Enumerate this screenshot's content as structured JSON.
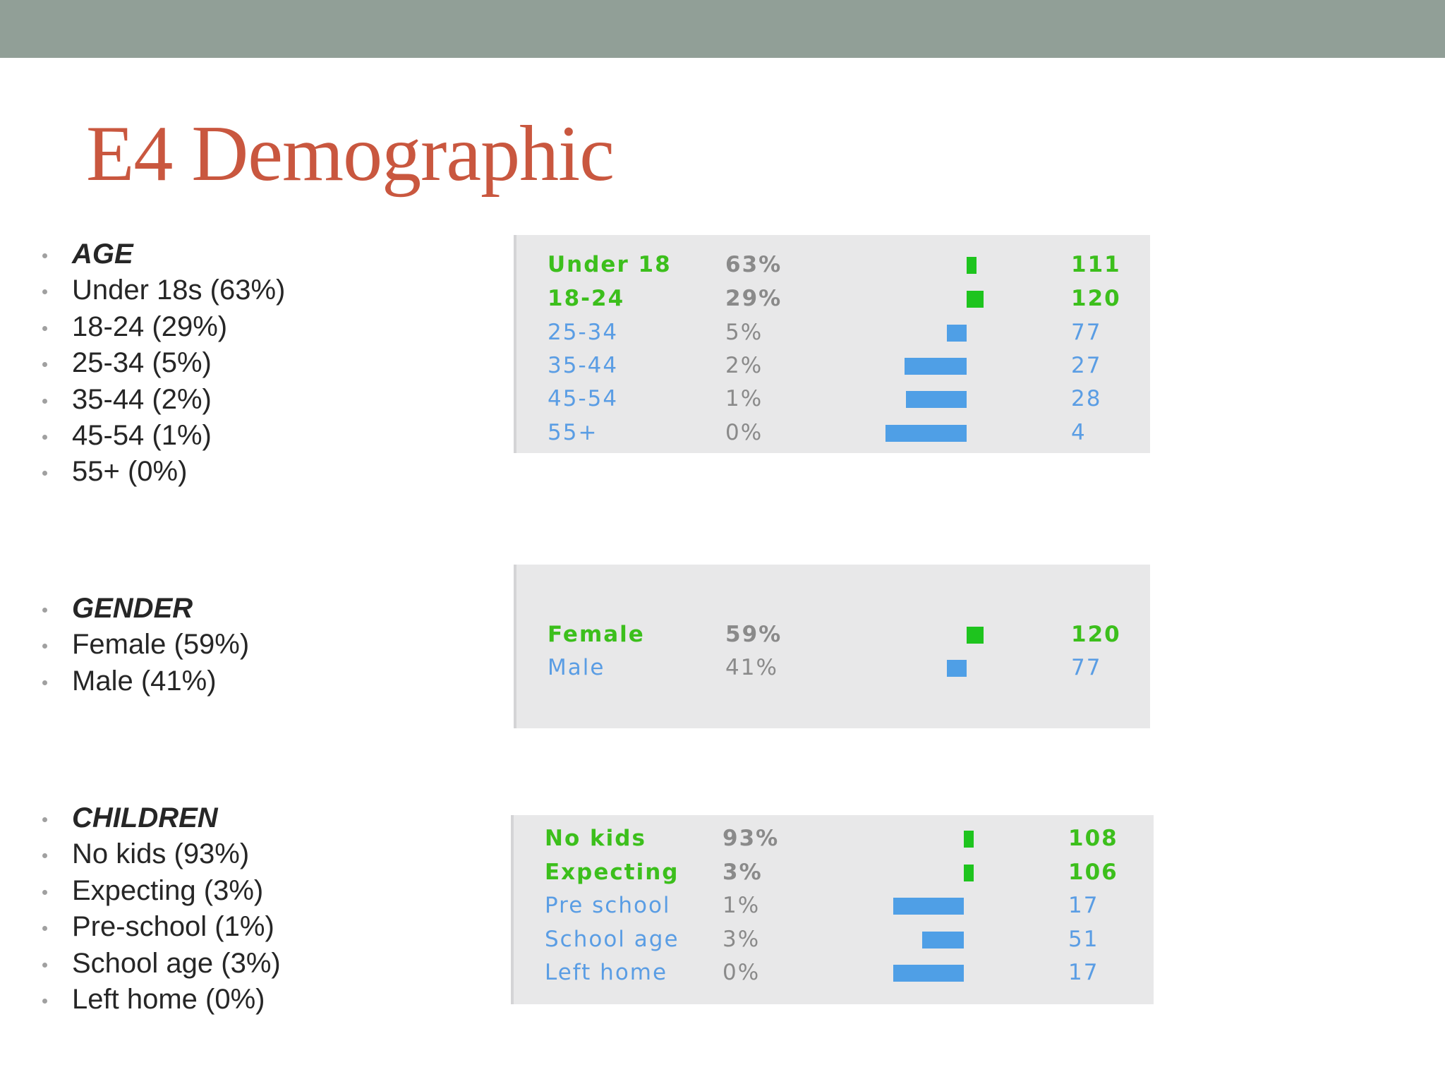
{
  "colors": {
    "top_bar": "#919f97",
    "title": "#c9573f",
    "panel_background": "#e8e8e9",
    "above_average": "#3cbf1c",
    "below_average": "#5a9de4"
  },
  "slide": {
    "title": "E4 Demographic"
  },
  "bullets": {
    "age": [
      "AGE",
      "Under 18s (63%)",
      "18-24 (29%)",
      "25-34 (5%)",
      "35-44 (2%)",
      "45-54 (1%)",
      "55+ (0%)"
    ],
    "gender": [
      "GENDER",
      "Female (59%)",
      "Male (41%)"
    ],
    "children": [
      "CHILDREN",
      "No kids (93%)",
      "Expecting (3%)",
      "Pre-school (1%)",
      "School age (3%)",
      "Left home (0%)"
    ]
  },
  "panels": {
    "age": {
      "rows": [
        {
          "label": "Under 18",
          "percent": "63%",
          "count": "111",
          "highlight": "green",
          "bar_direction": "right",
          "bar_magnitude": 11
        },
        {
          "label": "18-24",
          "percent": "29%",
          "count": "120",
          "highlight": "green",
          "bar_direction": "right",
          "bar_magnitude": 20
        },
        {
          "label": "25-34",
          "percent": "5%",
          "count": "77",
          "highlight": "blue",
          "bar_direction": "left",
          "bar_magnitude": 23
        },
        {
          "label": "35-44",
          "percent": "2%",
          "count": "27",
          "highlight": "blue",
          "bar_direction": "left",
          "bar_magnitude": 73
        },
        {
          "label": "45-54",
          "percent": "1%",
          "count": "28",
          "highlight": "blue",
          "bar_direction": "left",
          "bar_magnitude": 72
        },
        {
          "label": "55+",
          "percent": "0%",
          "count": "4",
          "highlight": "blue",
          "bar_direction": "left",
          "bar_magnitude": 96
        }
      ]
    },
    "gender": {
      "rows": [
        {
          "label": "Female",
          "percent": "59%",
          "count": "120",
          "highlight": "green",
          "bar_direction": "right",
          "bar_magnitude": 20
        },
        {
          "label": "Male",
          "percent": "41%",
          "count": "77",
          "highlight": "blue",
          "bar_direction": "left",
          "bar_magnitude": 23
        }
      ]
    },
    "children": {
      "rows": [
        {
          "label": "No kids",
          "percent": "93%",
          "count": "108",
          "highlight": "green",
          "bar_direction": "right",
          "bar_magnitude": 8
        },
        {
          "label": "Expecting",
          "percent": "3%",
          "count": "106",
          "highlight": "green",
          "bar_direction": "right",
          "bar_magnitude": 6
        },
        {
          "label": "Pre school",
          "percent": "1%",
          "count": "17",
          "highlight": "blue",
          "bar_direction": "left",
          "bar_magnitude": 83
        },
        {
          "label": "School age",
          "percent": "3%",
          "count": "51",
          "highlight": "blue",
          "bar_direction": "left",
          "bar_magnitude": 49
        },
        {
          "label": "Left home",
          "percent": "0%",
          "count": "17",
          "highlight": "blue",
          "bar_direction": "left",
          "bar_magnitude": 83
        }
      ]
    }
  }
}
